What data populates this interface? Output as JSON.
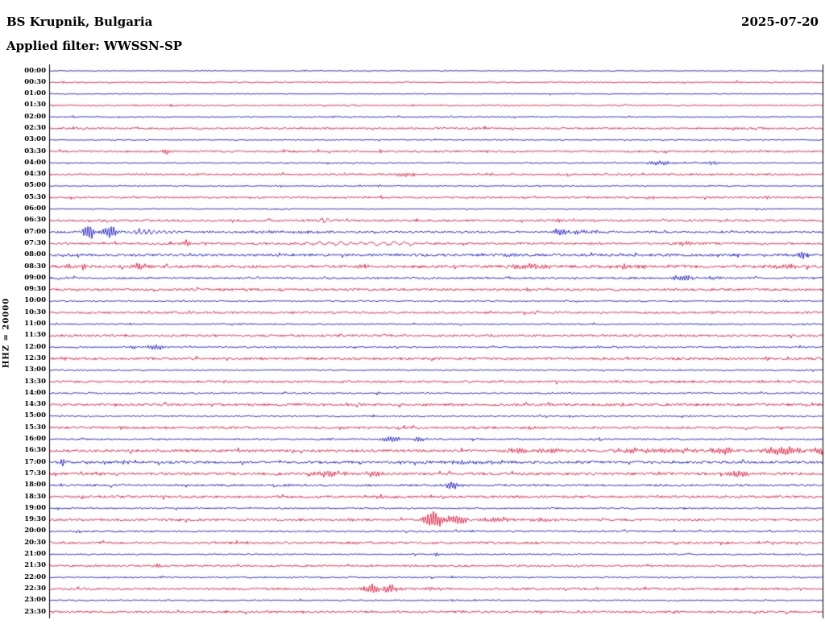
{
  "header": {
    "station": "BS Krupnik, Bulgaria",
    "date": "2025-07-20",
    "filter": "Applied filter: WWSSN-SP"
  },
  "axis": {
    "scale_label": "HHZ = 20000"
  },
  "chart_data": {
    "type": "line",
    "subtype": "helicorder-seismogram",
    "title": "BS Krupnik, Bulgaria 2025-07-20 HHZ helicorder plot",
    "minutes_per_line": 30,
    "colors": {
      "blue": "#0000cc",
      "red": "#e8002a"
    },
    "event_fields": {
      "m": "minute offset within line",
      "a": "peak amplitude px",
      "s": "envelope sigma px",
      "f": "oscillation freq rad/px (optional)"
    },
    "rows": [
      {
        "time": "00:00",
        "color": "blue",
        "noise": 0.5,
        "events": [
          {
            "m": 29.1,
            "a": 1.5,
            "s": 3
          }
        ]
      },
      {
        "time": "00:30",
        "color": "red",
        "noise": 0.7,
        "events": [
          {
            "m": 0.5,
            "a": 1.5,
            "s": 2
          },
          {
            "m": 26.7,
            "a": 2,
            "s": 4
          }
        ]
      },
      {
        "time": "01:00",
        "color": "blue",
        "noise": 0.55,
        "events": [
          {
            "m": 19.4,
            "a": 1.5,
            "s": 2
          }
        ]
      },
      {
        "time": "01:30",
        "color": "red",
        "noise": 0.9,
        "events": [
          {
            "m": 4.7,
            "a": 2.5,
            "s": 2
          },
          {
            "m": 14.1,
            "a": 1.5,
            "s": 3
          }
        ]
      },
      {
        "time": "02:00",
        "color": "blue",
        "noise": 0.7,
        "events": [
          {
            "m": 11.0,
            "a": 2.5,
            "s": 2
          },
          {
            "m": 18.0,
            "a": 2.5,
            "s": 2
          }
        ]
      },
      {
        "time": "02:30",
        "color": "red",
        "noise": 1.1,
        "events": [
          {
            "m": 4.7,
            "a": 2,
            "s": 3
          },
          {
            "m": 12.6,
            "a": 2,
            "s": 3
          },
          {
            "m": 23.7,
            "a": 2,
            "s": 3
          },
          {
            "m": 27.8,
            "a": 2,
            "s": 3
          }
        ]
      },
      {
        "time": "03:00",
        "color": "blue",
        "noise": 0.65,
        "events": [
          {
            "m": 12.8,
            "a": 1.5,
            "s": 2
          }
        ]
      },
      {
        "time": "03:30",
        "color": "red",
        "noise": 1.1,
        "events": [
          {
            "m": 4.5,
            "a": 5,
            "s": 2.5
          },
          {
            "m": 12.8,
            "a": 2,
            "s": 3
          }
        ]
      },
      {
        "time": "04:00",
        "color": "blue",
        "noise": 0.7,
        "events": [
          {
            "m": 18.6,
            "a": 1.5,
            "s": 2
          },
          {
            "m": 23.7,
            "a": 3,
            "s": 12
          },
          {
            "m": 25.7,
            "a": 2.5,
            "s": 6
          }
        ]
      },
      {
        "time": "04:30",
        "color": "red",
        "noise": 1.1,
        "events": [
          {
            "m": 13.8,
            "a": 3.5,
            "s": 12
          },
          {
            "m": 17.1,
            "a": 2,
            "s": 4
          }
        ]
      },
      {
        "time": "05:00",
        "color": "blue",
        "noise": 0.65,
        "events": [
          {
            "m": 9.0,
            "a": 1.5,
            "s": 2
          },
          {
            "m": 12.8,
            "a": 1.5,
            "s": 2
          }
        ]
      },
      {
        "time": "05:30",
        "color": "red",
        "noise": 1.1,
        "events": [
          {
            "m": 12.9,
            "a": 2,
            "s": 3
          },
          {
            "m": 23.3,
            "a": 2.5,
            "s": 4
          },
          {
            "m": 27.8,
            "a": 2,
            "s": 3
          }
        ]
      },
      {
        "time": "06:00",
        "color": "blue",
        "noise": 0.65,
        "events": [
          {
            "m": 27.8,
            "a": 2,
            "s": 2
          }
        ]
      },
      {
        "time": "06:30",
        "color": "red",
        "noise": 1.2,
        "events": [
          {
            "m": 1.6,
            "a": 2,
            "s": 3
          },
          {
            "m": 10.6,
            "a": 3,
            "s": 6,
            "f": 0.8
          },
          {
            "m": 19.8,
            "a": 2,
            "s": 3
          }
        ]
      },
      {
        "time": "07:00",
        "color": "blue",
        "noise": 1.1,
        "events": [
          {
            "m": 1.5,
            "a": 13,
            "s": 5
          },
          {
            "m": 2.3,
            "a": 8,
            "s": 8
          },
          {
            "m": 3.9,
            "a": 3,
            "s": 20,
            "f": 1.0
          },
          {
            "m": 9.0,
            "a": 1.5,
            "s": 60
          },
          {
            "m": 19.9,
            "a": 5,
            "s": 7
          },
          {
            "m": 20.7,
            "a": 3,
            "s": 10
          }
        ]
      },
      {
        "time": "07:30",
        "color": "red",
        "noise": 1.2,
        "events": [
          {
            "m": 5.3,
            "a": 4,
            "s": 5
          },
          {
            "m": 10.8,
            "a": 2.5,
            "s": 25,
            "f": 0.45
          },
          {
            "m": 13.2,
            "a": 2.5,
            "s": 30,
            "f": 0.45
          },
          {
            "m": 21.0,
            "a": 1.5,
            "s": 10
          },
          {
            "m": 24.6,
            "a": 3,
            "s": 8
          }
        ]
      },
      {
        "time": "08:00",
        "color": "blue",
        "noise": 1.5,
        "events": [
          {
            "m": 0.5,
            "a": 2,
            "s": 3
          },
          {
            "m": 18.0,
            "a": 2,
            "s": 10
          },
          {
            "m": 27.9,
            "a": 2,
            "s": 6
          },
          {
            "m": 29.2,
            "a": 7,
            "s": 4
          }
        ]
      },
      {
        "time": "08:30",
        "color": "red",
        "noise": 1.7,
        "events": [
          {
            "m": 0.7,
            "a": 3,
            "s": 4
          },
          {
            "m": 1.3,
            "a": 6,
            "s": 2
          },
          {
            "m": 3.5,
            "a": 4,
            "s": 8
          },
          {
            "m": 12.2,
            "a": 2.5,
            "s": 5
          },
          {
            "m": 18.6,
            "a": 2.5,
            "s": 20
          },
          {
            "m": 22.5,
            "a": 2.5,
            "s": 15
          },
          {
            "m": 28.5,
            "a": 2.5,
            "s": 10
          }
        ]
      },
      {
        "time": "09:00",
        "color": "blue",
        "noise": 1.1,
        "events": [
          {
            "m": 0.6,
            "a": 2,
            "s": 3
          },
          {
            "m": 24.6,
            "a": 4,
            "s": 10
          },
          {
            "m": 25.8,
            "a": 3,
            "s": 6
          }
        ]
      },
      {
        "time": "09:30",
        "color": "red",
        "noise": 1.4,
        "events": [
          {
            "m": 9.0,
            "a": 1.8,
            "s": 5
          },
          {
            "m": 18.6,
            "a": 1.8,
            "s": 5
          }
        ]
      },
      {
        "time": "10:00",
        "color": "blue",
        "noise": 0.8,
        "events": [
          {
            "m": 28.5,
            "a": 3,
            "s": 2.5
          }
        ]
      },
      {
        "time": "10:30",
        "color": "red",
        "noise": 1.2,
        "events": [
          {
            "m": 3.4,
            "a": 2,
            "s": 3
          },
          {
            "m": 25.8,
            "a": 1.8,
            "s": 4
          }
        ]
      },
      {
        "time": "11:00",
        "color": "blue",
        "noise": 0.8,
        "events": [
          {
            "m": 3.1,
            "a": 1.5,
            "s": 2
          },
          {
            "m": 7.4,
            "a": 1.5,
            "s": 2
          }
        ]
      },
      {
        "time": "11:30",
        "color": "red",
        "noise": 1.3,
        "events": []
      },
      {
        "time": "12:00",
        "color": "blue",
        "noise": 0.9,
        "events": [
          {
            "m": 3.2,
            "a": 2,
            "s": 4
          },
          {
            "m": 4.1,
            "a": 4,
            "s": 7
          },
          {
            "m": 21.3,
            "a": 1.5,
            "s": 3
          },
          {
            "m": 27.8,
            "a": 1.5,
            "s": 3
          }
        ]
      },
      {
        "time": "12:30",
        "color": "red",
        "noise": 1.4,
        "events": [
          {
            "m": 0.5,
            "a": 2.5,
            "s": 3
          }
        ]
      },
      {
        "time": "13:00",
        "color": "blue",
        "noise": 0.8,
        "events": []
      },
      {
        "time": "13:30",
        "color": "red",
        "noise": 1.3,
        "events": []
      },
      {
        "time": "14:00",
        "color": "blue",
        "noise": 0.9,
        "events": [
          {
            "m": 12.8,
            "a": 1.5,
            "s": 2
          }
        ]
      },
      {
        "time": "14:30",
        "color": "red",
        "noise": 1.4,
        "events": [
          {
            "m": 9.6,
            "a": 2,
            "s": 4
          },
          {
            "m": 22.2,
            "a": 1.8,
            "s": 4
          }
        ]
      },
      {
        "time": "15:00",
        "color": "blue",
        "noise": 0.9,
        "events": [
          {
            "m": 7.4,
            "a": 1.8,
            "s": 3
          }
        ]
      },
      {
        "time": "15:30",
        "color": "red",
        "noise": 1.4,
        "events": [
          {
            "m": 2.8,
            "a": 2,
            "s": 3
          },
          {
            "m": 18.7,
            "a": 2,
            "s": 4
          },
          {
            "m": 24.6,
            "a": 2,
            "s": 4
          }
        ]
      },
      {
        "time": "16:00",
        "color": "blue",
        "noise": 0.9,
        "events": [
          {
            "m": 10.9,
            "a": 2,
            "s": 3
          },
          {
            "m": 13.3,
            "a": 4.5,
            "s": 10
          },
          {
            "m": 14.3,
            "a": 3,
            "s": 8
          }
        ]
      },
      {
        "time": "16:30",
        "color": "red",
        "noise": 1.5,
        "events": [
          {
            "m": 18.2,
            "a": 5,
            "s": 8
          },
          {
            "m": 19.5,
            "a": 3,
            "s": 15
          },
          {
            "m": 22.5,
            "a": 4,
            "s": 12
          },
          {
            "m": 24.0,
            "a": 2.5,
            "s": 40
          },
          {
            "m": 26.1,
            "a": 5,
            "s": 12
          },
          {
            "m": 28.5,
            "a": 6,
            "s": 15
          },
          {
            "m": 30.0,
            "a": 5,
            "s": 10
          }
        ]
      },
      {
        "time": "17:00",
        "color": "blue",
        "noise": 1.5,
        "events": [
          {
            "m": 0.5,
            "a": 6,
            "s": 2.5
          },
          {
            "m": 2.9,
            "a": 3,
            "s": 6
          },
          {
            "m": 16.5,
            "a": 2,
            "s": 30
          }
        ]
      },
      {
        "time": "17:30",
        "color": "red",
        "noise": 1.5,
        "events": [
          {
            "m": 10.8,
            "a": 4,
            "s": 14
          },
          {
            "m": 12.6,
            "a": 3,
            "s": 10
          },
          {
            "m": 26.7,
            "a": 4.5,
            "s": 9
          }
        ]
      },
      {
        "time": "18:00",
        "color": "blue",
        "noise": 1.2,
        "events": [
          {
            "m": 0.5,
            "a": 2.5,
            "s": 2
          },
          {
            "m": 9.3,
            "a": 2,
            "s": 4
          },
          {
            "m": 15.6,
            "a": 5,
            "s": 7
          }
        ]
      },
      {
        "time": "18:30",
        "color": "red",
        "noise": 1.4,
        "events": [
          {
            "m": 12.8,
            "a": 2.5,
            "s": 5
          },
          {
            "m": 18.3,
            "a": 2,
            "s": 4
          }
        ]
      },
      {
        "time": "19:00",
        "color": "blue",
        "noise": 0.9,
        "events": []
      },
      {
        "time": "19:30",
        "color": "red",
        "noise": 1.3,
        "events": [
          {
            "m": 11.6,
            "a": 2,
            "s": 3
          },
          {
            "m": 14.9,
            "a": 14,
            "s": 8
          },
          {
            "m": 15.8,
            "a": 8,
            "s": 10
          },
          {
            "m": 17.4,
            "a": 3,
            "s": 15
          },
          {
            "m": 19.2,
            "a": 2,
            "s": 15
          }
        ]
      },
      {
        "time": "20:00",
        "color": "blue",
        "noise": 1.0,
        "events": []
      },
      {
        "time": "20:30",
        "color": "red",
        "noise": 1.3,
        "events": []
      },
      {
        "time": "21:00",
        "color": "blue",
        "noise": 0.8,
        "events": [
          {
            "m": 15.0,
            "a": 2,
            "s": 2.5
          }
        ]
      },
      {
        "time": "21:30",
        "color": "red",
        "noise": 1.2,
        "events": [
          {
            "m": 4.2,
            "a": 2.5,
            "s": 3
          }
        ]
      },
      {
        "time": "22:00",
        "color": "blue",
        "noise": 0.9,
        "events": [
          {
            "m": 4.3,
            "a": 3,
            "s": 2.5
          },
          {
            "m": 15.6,
            "a": 1.5,
            "s": 3
          }
        ]
      },
      {
        "time": "22:30",
        "color": "red",
        "noise": 1.3,
        "events": [
          {
            "m": 12.0,
            "a": 2,
            "s": 4
          },
          {
            "m": 12.5,
            "a": 8,
            "s": 7
          },
          {
            "m": 13.2,
            "a": 5,
            "s": 8
          },
          {
            "m": 15.0,
            "a": 2,
            "s": 10
          }
        ]
      },
      {
        "time": "23:00",
        "color": "blue",
        "noise": 0.8,
        "events": [
          {
            "m": 15.6,
            "a": 1.8,
            "s": 3
          }
        ]
      },
      {
        "time": "23:30",
        "color": "red",
        "noise": 1.2,
        "events": []
      }
    ]
  }
}
